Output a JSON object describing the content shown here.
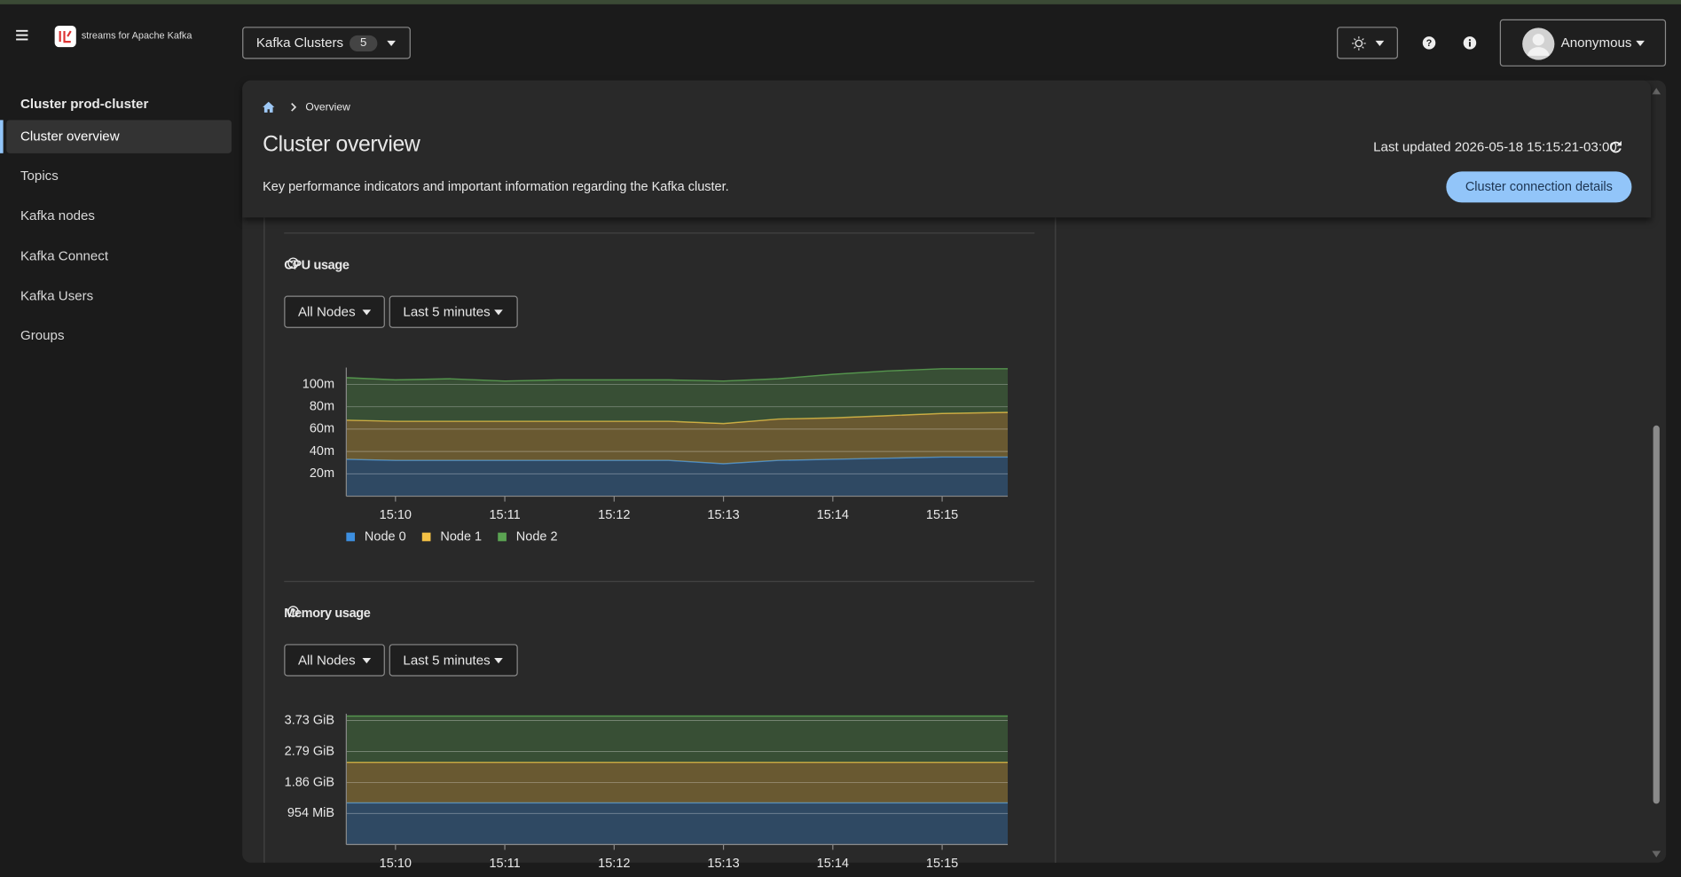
{
  "header": {
    "brand": "streams for Apache Kafka",
    "clusters_button": "Kafka Clusters",
    "cluster_count": "5",
    "user": "Anonymous"
  },
  "sidebar": {
    "title": "Cluster prod-cluster",
    "items": [
      "Cluster overview",
      "Topics",
      "Kafka nodes",
      "Kafka Connect",
      "Kafka Users",
      "Groups"
    ]
  },
  "page": {
    "breadcrumb": "Overview",
    "title": "Cluster overview",
    "last_updated": "Last updated 2026-05-18 15:15:21-03:00",
    "description": "Key performance indicators and important information regarding the Kafka cluster.",
    "button": "Cluster connection details"
  },
  "chart_data": [
    {
      "type": "area",
      "title": "CPU usage",
      "filters": [
        "All Nodes",
        "Last 5 minutes"
      ],
      "x": [
        9.55,
        10,
        10.5,
        11,
        11.5,
        12,
        12.5,
        13,
        13.5,
        14,
        14.5,
        15,
        15.6
      ],
      "xlim": [
        9.55,
        15.6
      ],
      "xticks": [
        {
          "value": 10,
          "label": "15:10"
        },
        {
          "value": 11,
          "label": "15:11"
        },
        {
          "value": 12,
          "label": "15:12"
        },
        {
          "value": 13,
          "label": "15:13"
        },
        {
          "value": 14,
          "label": "15:14"
        },
        {
          "value": 15,
          "label": "15:15"
        }
      ],
      "ylim": [
        0,
        115
      ],
      "yticks": [
        {
          "value": 20,
          "label": "20m"
        },
        {
          "value": 40,
          "label": "40m"
        },
        {
          "value": 60,
          "label": "60m"
        },
        {
          "value": 80,
          "label": "80m"
        },
        {
          "value": 100,
          "label": "100m"
        }
      ],
      "stacked": true,
      "grid": true,
      "series": [
        {
          "name": "Node 0",
          "color": "#3d8fe0",
          "values": [
            33,
            32,
            32,
            32,
            32,
            32,
            32,
            29,
            32,
            33,
            34,
            35,
            35
          ]
        },
        {
          "name": "Node 1",
          "color": "#f4c145",
          "values": [
            35,
            35,
            35,
            35,
            35,
            35,
            35,
            36,
            37,
            37,
            38,
            39,
            40
          ]
        },
        {
          "name": "Node 2",
          "color": "#5ba352",
          "values": [
            38,
            37,
            38,
            36,
            37,
            37,
            37,
            38,
            36,
            39,
            40,
            40,
            39
          ]
        }
      ]
    },
    {
      "type": "area",
      "title": "Memory usage",
      "filters": [
        "All Nodes",
        "Last 5 minutes"
      ],
      "x": [
        9.55,
        10,
        10.5,
        11,
        11.5,
        12,
        12.5,
        13,
        13.5,
        14,
        14.5,
        15,
        15.6
      ],
      "xlim": [
        9.55,
        15.6
      ],
      "xticks": [
        {
          "value": 10,
          "label": "15:10"
        },
        {
          "value": 11,
          "label": "15:11"
        },
        {
          "value": 12,
          "label": "15:12"
        },
        {
          "value": 13,
          "label": "15:13"
        },
        {
          "value": 14,
          "label": "15:14"
        },
        {
          "value": 15,
          "label": "15:15"
        }
      ],
      "ylim": [
        0,
        3.93
      ],
      "yticks": [
        {
          "value": 0.9316,
          "label": "954 MiB"
        },
        {
          "value": 1.8633,
          "label": "1.86 GiB"
        },
        {
          "value": 2.7949,
          "label": "2.79 GiB"
        },
        {
          "value": 3.7265,
          "label": "3.73 GiB"
        }
      ],
      "stacked": true,
      "grid": true,
      "series": [
        {
          "color": "#3d8fe0",
          "values": [
            1.25,
            1.25,
            1.25,
            1.25,
            1.25,
            1.25,
            1.25,
            1.25,
            1.25,
            1.25,
            1.25,
            1.25,
            1.25
          ]
        },
        {
          "color": "#f4c145",
          "values": [
            1.22,
            1.22,
            1.22,
            1.22,
            1.22,
            1.22,
            1.22,
            1.22,
            1.22,
            1.22,
            1.22,
            1.22,
            1.22
          ]
        },
        {
          "color": "#5ba352",
          "values": [
            1.39,
            1.39,
            1.39,
            1.39,
            1.39,
            1.39,
            1.39,
            1.39,
            1.39,
            1.39,
            1.39,
            1.39,
            1.39
          ]
        }
      ]
    }
  ]
}
